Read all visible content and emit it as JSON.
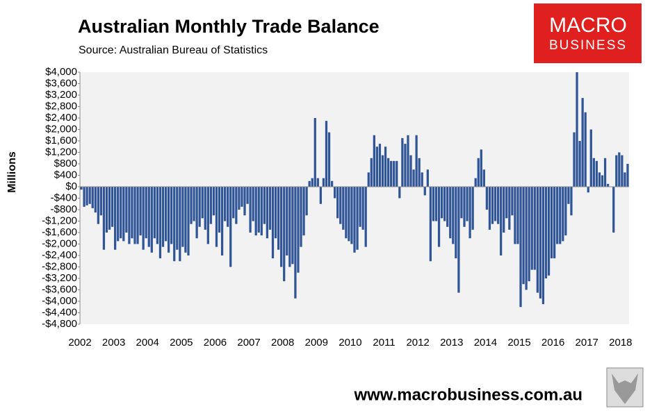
{
  "chart_data": {
    "type": "bar",
    "title": "Australian Monthly Trade Balance",
    "subtitle": "Source: Australian Bureau of Statistics",
    "y_label": "Millions",
    "color": "#2f5597",
    "categories": [
      "2002",
      null,
      null,
      null,
      null,
      null,
      null,
      null,
      null,
      null,
      null,
      null,
      "2003",
      null,
      null,
      null,
      null,
      null,
      null,
      null,
      null,
      null,
      null,
      null,
      "2004",
      null,
      null,
      null,
      null,
      null,
      null,
      null,
      null,
      null,
      null,
      null,
      "2005",
      null,
      null,
      null,
      null,
      null,
      null,
      null,
      null,
      null,
      null,
      null,
      "2006",
      null,
      null,
      null,
      null,
      null,
      null,
      null,
      null,
      null,
      null,
      null,
      "2007",
      null,
      null,
      null,
      null,
      null,
      null,
      null,
      null,
      null,
      null,
      null,
      "2008",
      null,
      null,
      null,
      null,
      null,
      null,
      null,
      null,
      null,
      null,
      null,
      "2009",
      null,
      null,
      null,
      null,
      null,
      null,
      null,
      null,
      null,
      null,
      null,
      "2010",
      null,
      null,
      null,
      null,
      null,
      null,
      null,
      null,
      null,
      null,
      null,
      "2011",
      null,
      null,
      null,
      null,
      null,
      null,
      null,
      null,
      null,
      null,
      null,
      "2012",
      null,
      null,
      null,
      null,
      null,
      null,
      null,
      null,
      null,
      null,
      null,
      "2013",
      null,
      null,
      null,
      null,
      null,
      null,
      null,
      null,
      null,
      null,
      null,
      "2014",
      null,
      null,
      null,
      null,
      null,
      null,
      null,
      null,
      null,
      null,
      null,
      "2015",
      null,
      null,
      null,
      null,
      null,
      null,
      null,
      null,
      null,
      null,
      null,
      "2016",
      null,
      null,
      null,
      null,
      null,
      null,
      null,
      null,
      null,
      null,
      null,
      "2017",
      null,
      null,
      null,
      null,
      null,
      null,
      null,
      null,
      null,
      null,
      null,
      "2018",
      null,
      null
    ],
    "values": [
      -100,
      -700,
      -650,
      -600,
      -750,
      -900,
      -1300,
      -1000,
      -2200,
      -1600,
      -1500,
      -1400,
      -2200,
      -1900,
      -1800,
      -1900,
      -1600,
      -2000,
      -1800,
      -2000,
      -2000,
      -1700,
      -2200,
      -1800,
      -2100,
      -2300,
      -1800,
      -2000,
      -2500,
      -2100,
      -1900,
      -2300,
      -2000,
      -2600,
      -2200,
      -2600,
      -2100,
      -2300,
      -2400,
      -1300,
      -1200,
      -1800,
      -1400,
      -1100,
      -1500,
      -2000,
      -1300,
      -1000,
      -2100,
      -1600,
      -2400,
      -1200,
      -1400,
      -2800,
      -1100,
      -1300,
      -800,
      -700,
      -1000,
      -600,
      -1600,
      -1200,
      -1700,
      -1600,
      -1700,
      -1300,
      -1800,
      -1500,
      -2500,
      -1800,
      -2200,
      -2800,
      -3300,
      -2400,
      -2800,
      -2700,
      -3900,
      -3000,
      -2100,
      -1700,
      -1000,
      200,
      300,
      2400,
      300,
      -600,
      300,
      2300,
      1900,
      200,
      -400,
      -1100,
      -1300,
      -1500,
      -1800,
      -1900,
      -2000,
      -2300,
      -2200,
      -1400,
      -1500,
      -2100,
      500,
      1000,
      1800,
      1400,
      1500,
      1100,
      1400,
      1000,
      900,
      900,
      900,
      -400,
      1700,
      1500,
      1800,
      1100,
      600,
      1800,
      1000,
      500,
      -300,
      600,
      -2600,
      -1200,
      -1200,
      -2100,
      -1100,
      -1200,
      -1400,
      -1800,
      -2000,
      -2500,
      -3700,
      -1100,
      -1400,
      -1200,
      -1800,
      -1500,
      300,
      1000,
      1300,
      600,
      -800,
      -1500,
      -1300,
      -1200,
      -1300,
      -2400,
      -1600,
      -1100,
      -1500,
      -1000,
      -2000,
      -2000,
      -4200,
      -3400,
      -3600,
      -3300,
      -2900,
      -2900,
      -3700,
      -3900,
      -4100,
      -3200,
      -3100,
      -2500,
      -2500,
      -2000,
      -2000,
      -1900,
      -1700,
      -600,
      -1000,
      1900,
      4000,
      1600,
      3100,
      2600,
      -200,
      2000,
      1000,
      900,
      500,
      400,
      1000,
      100,
      0,
      -1600,
      1100,
      1200,
      1100,
      500,
      800
    ],
    "ylim": [
      -4800,
      4000
    ],
    "yticks": [
      {
        "value": 4000,
        "label": "$4,000"
      },
      {
        "value": 3600,
        "label": "$3,600"
      },
      {
        "value": 3200,
        "label": "$3,200"
      },
      {
        "value": 2800,
        "label": "$2,800"
      },
      {
        "value": 2400,
        "label": "$2,400"
      },
      {
        "value": 2000,
        "label": "$2,000"
      },
      {
        "value": 1600,
        "label": "$1,600"
      },
      {
        "value": 1200,
        "label": "$1,200"
      },
      {
        "value": 800,
        "label": "$800"
      },
      {
        "value": 400,
        "label": "$400"
      },
      {
        "value": 0,
        "label": "$0"
      },
      {
        "value": -400,
        "label": "-$400"
      },
      {
        "value": -800,
        "label": "-$800"
      },
      {
        "value": -1200,
        "label": "-$1,200"
      },
      {
        "value": -1600,
        "label": "-$1,600"
      },
      {
        "value": -2000,
        "label": "-$2,000"
      },
      {
        "value": -2400,
        "label": "-$2,400"
      },
      {
        "value": -2800,
        "label": "-$2,800"
      },
      {
        "value": -3200,
        "label": "-$3,200"
      },
      {
        "value": -3600,
        "label": "-$3,600"
      },
      {
        "value": -4000,
        "label": "-$4,000"
      },
      {
        "value": -4400,
        "label": "-$4,400"
      },
      {
        "value": -4800,
        "label": "-$4,800"
      }
    ],
    "grid": false
  },
  "logo": {
    "line1": "MACRO",
    "line2": "BUSINESS"
  },
  "footer": "www.macrobusiness.com.au"
}
